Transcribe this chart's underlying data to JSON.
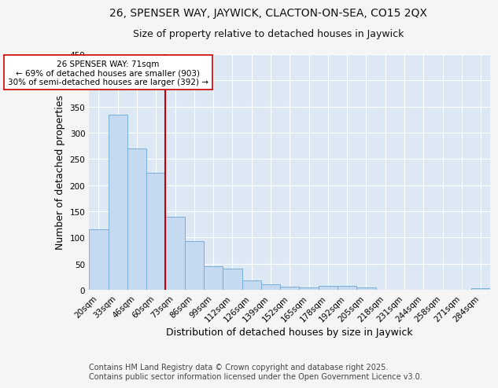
{
  "title1": "26, SPENSER WAY, JAYWICK, CLACTON-ON-SEA, CO15 2QX",
  "title2": "Size of property relative to detached houses in Jaywick",
  "xlabel": "Distribution of detached houses by size in Jaywick",
  "ylabel": "Number of detached properties",
  "bar_labels": [
    "20sqm",
    "33sqm",
    "46sqm",
    "60sqm",
    "73sqm",
    "86sqm",
    "99sqm",
    "112sqm",
    "126sqm",
    "139sqm",
    "152sqm",
    "165sqm",
    "178sqm",
    "192sqm",
    "205sqm",
    "218sqm",
    "231sqm",
    "244sqm",
    "258sqm",
    "271sqm",
    "284sqm"
  ],
  "bar_values": [
    116,
    335,
    270,
    223,
    140,
    93,
    45,
    41,
    18,
    11,
    6,
    5,
    7,
    7,
    4,
    0,
    0,
    0,
    0,
    0,
    3
  ],
  "bar_color": "#c5d9f0",
  "bar_edge_color": "#7aaed6",
  "vline_color": "#cc0000",
  "annotation_text": "26 SPENSER WAY: 71sqm\n← 69% of detached houses are smaller (903)\n30% of semi-detached houses are larger (392) →",
  "annotation_box_color": "#ffffff",
  "annotation_box_edge": "#cc0000",
  "ylim": [
    0,
    450
  ],
  "yticks": [
    0,
    50,
    100,
    150,
    200,
    250,
    300,
    350,
    400,
    450
  ],
  "bg_color": "#dce9f5",
  "fig_bg_color": "#f5f5f5",
  "footer_line1": "Contains HM Land Registry data © Crown copyright and database right 2025.",
  "footer_line2": "Contains public sector information licensed under the Open Government Licence v3.0.",
  "title_fontsize": 10,
  "subtitle_fontsize": 9,
  "axis_label_fontsize": 9,
  "tick_fontsize": 7.5,
  "footer_fontsize": 7,
  "annotation_fontsize": 7.5
}
